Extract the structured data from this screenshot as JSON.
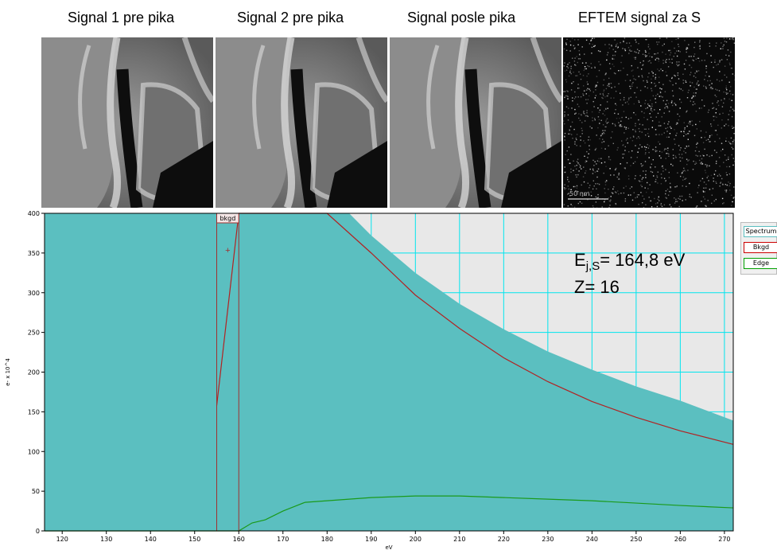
{
  "images": [
    {
      "title": "Signal 1 pre pika",
      "kind": "tem"
    },
    {
      "title": "Signal 2 pre pika",
      "kind": "tem"
    },
    {
      "title": "Signal posle pika",
      "kind": "tem"
    },
    {
      "title": "EFTEM signal za S",
      "kind": "eftem",
      "scalebar_label": "50 nm"
    }
  ],
  "annotation": {
    "edge_prefix": "E",
    "edge_sub": "j,S",
    "edge_value": "= 164,8 eV",
    "z_line": "Z= 16"
  },
  "legend": [
    {
      "label": "Spectrum",
      "color": "#5bbfc0"
    },
    {
      "label": "Bkgd",
      "color": "#cc0000"
    },
    {
      "label": "Edge",
      "color": "#00a000"
    }
  ],
  "window_label": "bkgd",
  "colors": {
    "spectrum_fill": "#5bbfc0",
    "plot_bg": "#e8e8e8",
    "grid": "#00e5ee",
    "bkgd_line": "#b22222",
    "edge_line": "#1a9a1a"
  },
  "chart_data": {
    "type": "area",
    "xlabel": "eV",
    "ylabel": "e- x 10^4",
    "xlim": [
      116,
      272
    ],
    "ylim": [
      0,
      400
    ],
    "xticks": [
      120,
      130,
      140,
      150,
      160,
      170,
      180,
      190,
      200,
      210,
      220,
      230,
      240,
      250,
      260,
      270
    ],
    "yticks": [
      0,
      50,
      100,
      150,
      200,
      250,
      300,
      350,
      400
    ],
    "background_window": {
      "label": "bkgd",
      "x_start": 155,
      "x_end": 160
    },
    "series": [
      {
        "name": "Spectrum",
        "x": [
          116,
          185,
          190,
          200,
          210,
          220,
          230,
          240,
          250,
          260,
          272
        ],
        "y": [
          400,
          400,
          372,
          325,
          286,
          254,
          226,
          203,
          182,
          164,
          139
        ]
      },
      {
        "name": "Bkgd",
        "x": [
          155,
          160,
          170,
          180,
          190,
          200,
          210,
          220,
          230,
          240,
          250,
          260,
          272
        ],
        "y": [
          158,
          400,
          400,
          400,
          350,
          297,
          255,
          218,
          188,
          163,
          143,
          126,
          109
        ]
      },
      {
        "name": "Edge",
        "x": [
          116,
          150,
          155,
          160,
          163,
          166,
          170,
          175,
          180,
          190,
          200,
          210,
          220,
          230,
          240,
          250,
          260,
          272
        ],
        "y": [
          0,
          0,
          0,
          0,
          10,
          14,
          25,
          36,
          38,
          42,
          44,
          44,
          42,
          40,
          38,
          35,
          32,
          29
        ]
      }
    ]
  }
}
